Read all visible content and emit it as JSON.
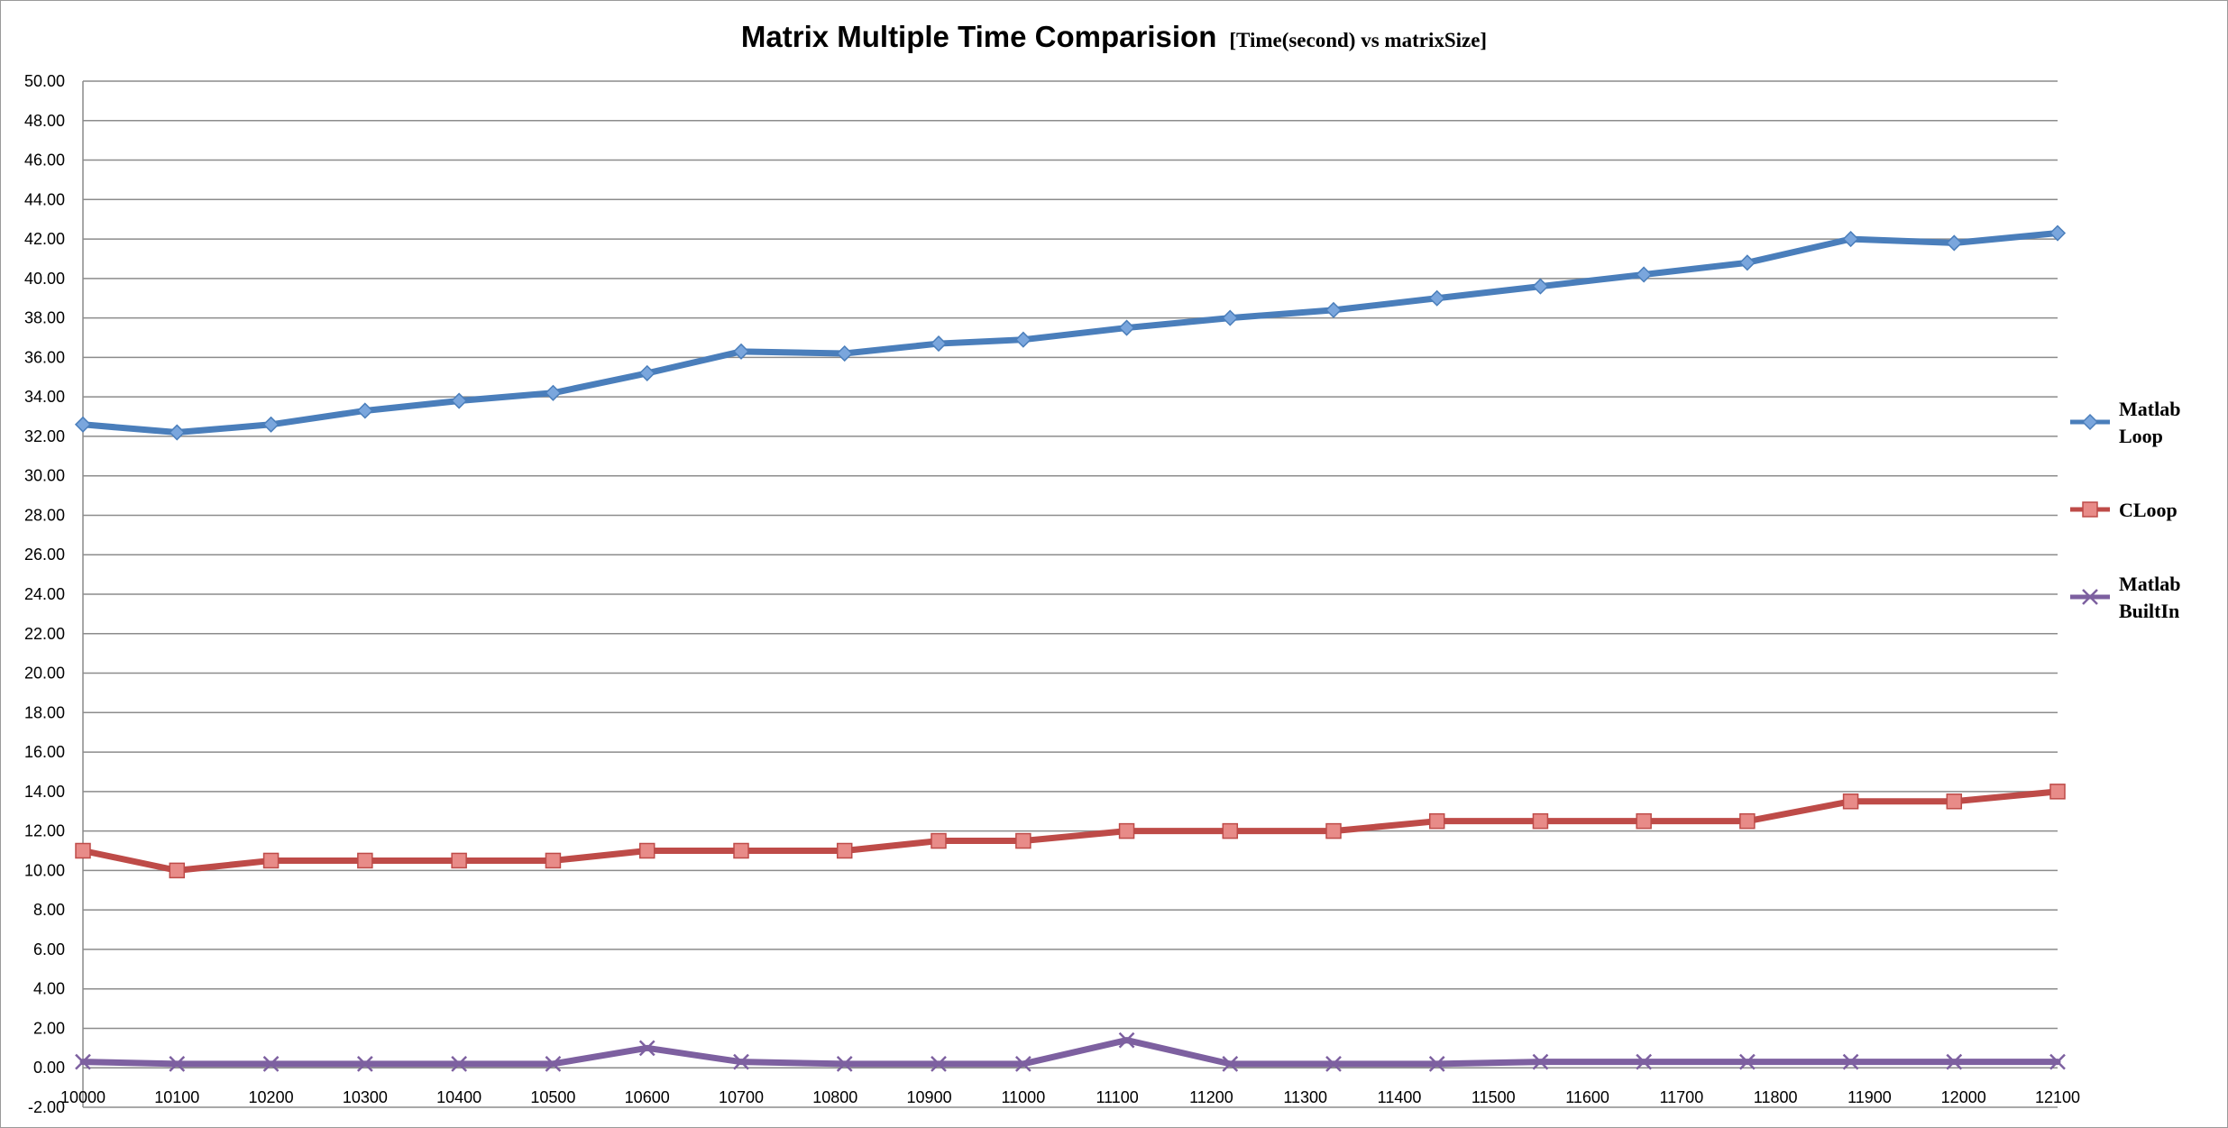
{
  "chart_data": {
    "type": "line",
    "title": "Matrix Multiple Time Comparision",
    "subtitle": "[Time(second) vs matrixSize]",
    "xlabel": "",
    "ylabel": "",
    "xlim": [
      10000,
      12100
    ],
    "ylim": [
      -2,
      50
    ],
    "xticks": [
      10000,
      10100,
      10200,
      10300,
      10400,
      10500,
      10600,
      10700,
      10800,
      10900,
      11000,
      11100,
      11200,
      11300,
      11400,
      11500,
      11600,
      11700,
      11800,
      11900,
      12000,
      12100
    ],
    "yticks": [
      "-2.00",
      "0.00",
      "2.00",
      "4.00",
      "6.00",
      "8.00",
      "10.00",
      "12.00",
      "14.00",
      "16.00",
      "18.00",
      "20.00",
      "22.00",
      "24.00",
      "26.00",
      "28.00",
      "30.00",
      "32.00",
      "34.00",
      "36.00",
      "38.00",
      "40.00",
      "42.00",
      "44.00",
      "46.00",
      "48.00",
      "50.00"
    ],
    "grid": true,
    "legend_position": "right",
    "series": [
      {
        "name": "Matlab Loop",
        "legend_lines": [
          "Matlab",
          "Loop"
        ],
        "color": "#4a7ebb",
        "marker": "diamond",
        "x": [
          10000,
          10100,
          10200,
          10300,
          10400,
          10500,
          10600,
          10700,
          10810,
          10910,
          11000,
          11110,
          11220,
          11330,
          11440,
          11550,
          11660,
          11770,
          11880,
          11990,
          12100
        ],
        "y": [
          32.6,
          32.2,
          32.6,
          33.3,
          33.8,
          34.2,
          35.2,
          36.3,
          36.2,
          36.7,
          36.9,
          37.5,
          38.0,
          38.4,
          39.0,
          39.6,
          40.2,
          40.8,
          42.0,
          41.8,
          42.3
        ]
      },
      {
        "name": "CLoop",
        "legend_lines": [
          "CLoop"
        ],
        "color": "#be4b48",
        "marker": "square",
        "x": [
          10000,
          10100,
          10200,
          10300,
          10400,
          10500,
          10600,
          10700,
          10810,
          10910,
          11000,
          11110,
          11220,
          11330,
          11440,
          11550,
          11660,
          11770,
          11880,
          11990,
          12100
        ],
        "y": [
          11,
          10,
          10.5,
          10.5,
          10.5,
          10.5,
          11,
          11,
          11,
          11.5,
          11.5,
          12,
          12,
          12,
          12.5,
          12.5,
          12.5,
          12.5,
          13.5,
          13.5,
          14
        ]
      },
      {
        "name": "Matlab BuiltIn",
        "legend_lines": [
          "Matlab",
          "BuiltIn"
        ],
        "color": "#7d60a0",
        "marker": "x",
        "x": [
          10000,
          10100,
          10200,
          10300,
          10400,
          10500,
          10600,
          10700,
          10810,
          10910,
          11000,
          11110,
          11220,
          11330,
          11440,
          11550,
          11660,
          11770,
          11880,
          11990,
          12100
        ],
        "y": [
          0.3,
          0.2,
          0.2,
          0.2,
          0.2,
          0.2,
          1.0,
          0.3,
          0.2,
          0.2,
          0.2,
          1.4,
          0.2,
          0.2,
          0.2,
          0.3,
          0.3,
          0.3,
          0.3,
          0.3,
          0.3
        ]
      }
    ]
  }
}
